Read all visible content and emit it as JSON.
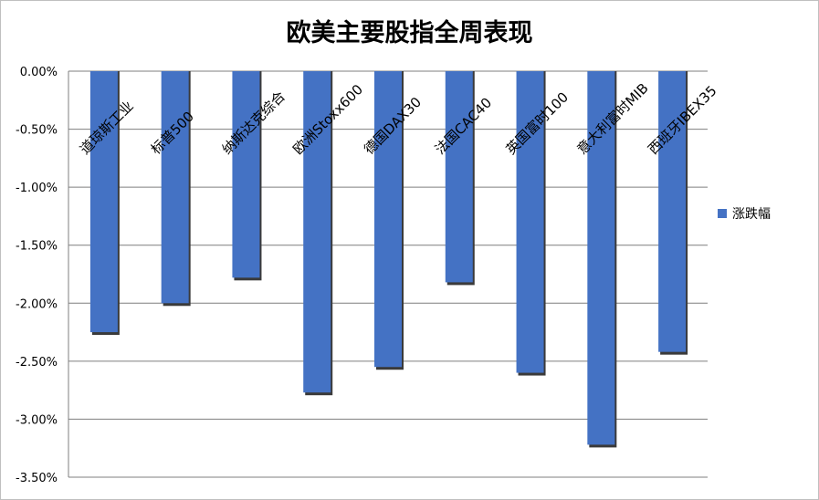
{
  "chart_data": {
    "type": "bar",
    "title": "欧美主要股指全周表现",
    "categories": [
      "道琼斯工业",
      "标普500",
      "纳斯达克综合",
      "欧洲Stoxx600",
      "德国DAX30",
      "法国CAC40",
      "英国富时100",
      "意大利富时MIB",
      "西班牙IBEX35"
    ],
    "series": [
      {
        "name": "涨跌幅",
        "values": [
          -2.25,
          -2.0,
          -1.78,
          -2.77,
          -2.55,
          -1.82,
          -2.6,
          -3.22,
          -2.42
        ]
      }
    ],
    "ylim": [
      -3.5,
      0
    ],
    "yticks": [
      "0.00%",
      "-0.50%",
      "-1.00%",
      "-1.50%",
      "-2.00%",
      "-2.50%",
      "-3.00%",
      "-3.50%"
    ],
    "ytick_values": [
      0,
      -0.5,
      -1.0,
      -1.5,
      -2.0,
      -2.5,
      -3.0,
      -3.5
    ],
    "grid": true,
    "legend": "right",
    "colors": {
      "bar": "#4472c4",
      "bar_shadow": "#3a3a3a",
      "grid": "#7f7f7f"
    }
  }
}
